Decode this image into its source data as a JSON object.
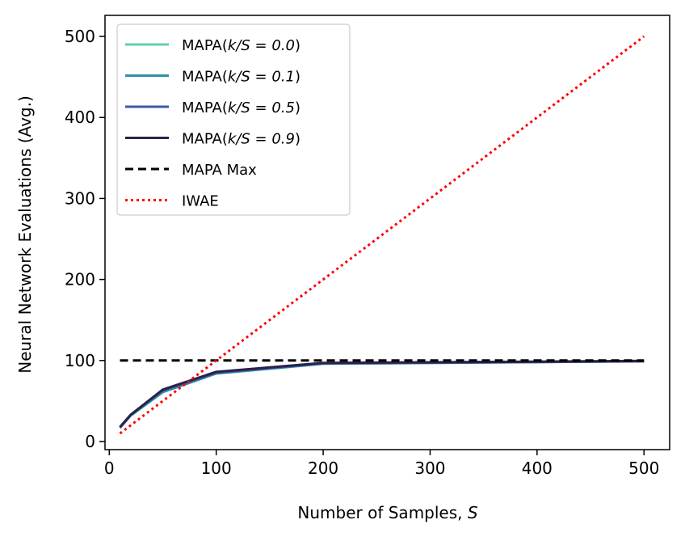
{
  "chart_data": {
    "type": "line",
    "xlabel_text": "Number of Samples, ",
    "xlabel_var": "S",
    "ylabel": "Neural Network Evaluations (Avg.)",
    "xlim": [
      -4,
      524
    ],
    "ylim": [
      -10,
      526
    ],
    "xticks": [
      0,
      100,
      200,
      300,
      400,
      500
    ],
    "yticks": [
      0,
      100,
      200,
      300,
      400,
      500
    ],
    "grid": false,
    "legend_position": "upper-left",
    "series": [
      {
        "name_prefix": "MAPA(",
        "name_math": "k/S = 0.0",
        "name_suffix": ")",
        "color": "#5fd1ad",
        "dash": "solid",
        "x": [
          10,
          20,
          50,
          100,
          200,
          500
        ],
        "y": [
          17,
          32,
          61,
          84,
          96,
          99
        ]
      },
      {
        "name_prefix": "MAPA(",
        "name_math": "k/S = 0.1",
        "name_suffix": ")",
        "color": "#2a93a8",
        "dash": "solid",
        "x": [
          10,
          20,
          50,
          100,
          200,
          500
        ],
        "y": [
          17,
          32,
          61,
          84,
          96,
          99
        ]
      },
      {
        "name_prefix": "MAPA(",
        "name_math": "k/S = 0.5",
        "name_suffix": ")",
        "color": "#3a5aa2",
        "dash": "solid",
        "x": [
          10,
          20,
          50,
          100,
          200,
          500
        ],
        "y": [
          17,
          33,
          63,
          85,
          96.5,
          99
        ]
      },
      {
        "name_prefix": "MAPA(",
        "name_math": "k/S = 0.9",
        "name_suffix": ")",
        "color": "#2e1f4a",
        "dash": "solid",
        "x": [
          10,
          20,
          50,
          100,
          200,
          500
        ],
        "y": [
          18,
          33,
          64,
          86,
          97,
          99.5
        ]
      },
      {
        "name_prefix": "MAPA Max",
        "name_math": "",
        "name_suffix": "",
        "color": "#000000",
        "dash": "dashed",
        "x": [
          10,
          500
        ],
        "y": [
          100,
          100
        ]
      },
      {
        "name_prefix": "IWAE",
        "name_math": "",
        "name_suffix": "",
        "color": "#ff0000",
        "dash": "dotted",
        "x": [
          10,
          500
        ],
        "y": [
          10,
          500
        ]
      }
    ]
  }
}
